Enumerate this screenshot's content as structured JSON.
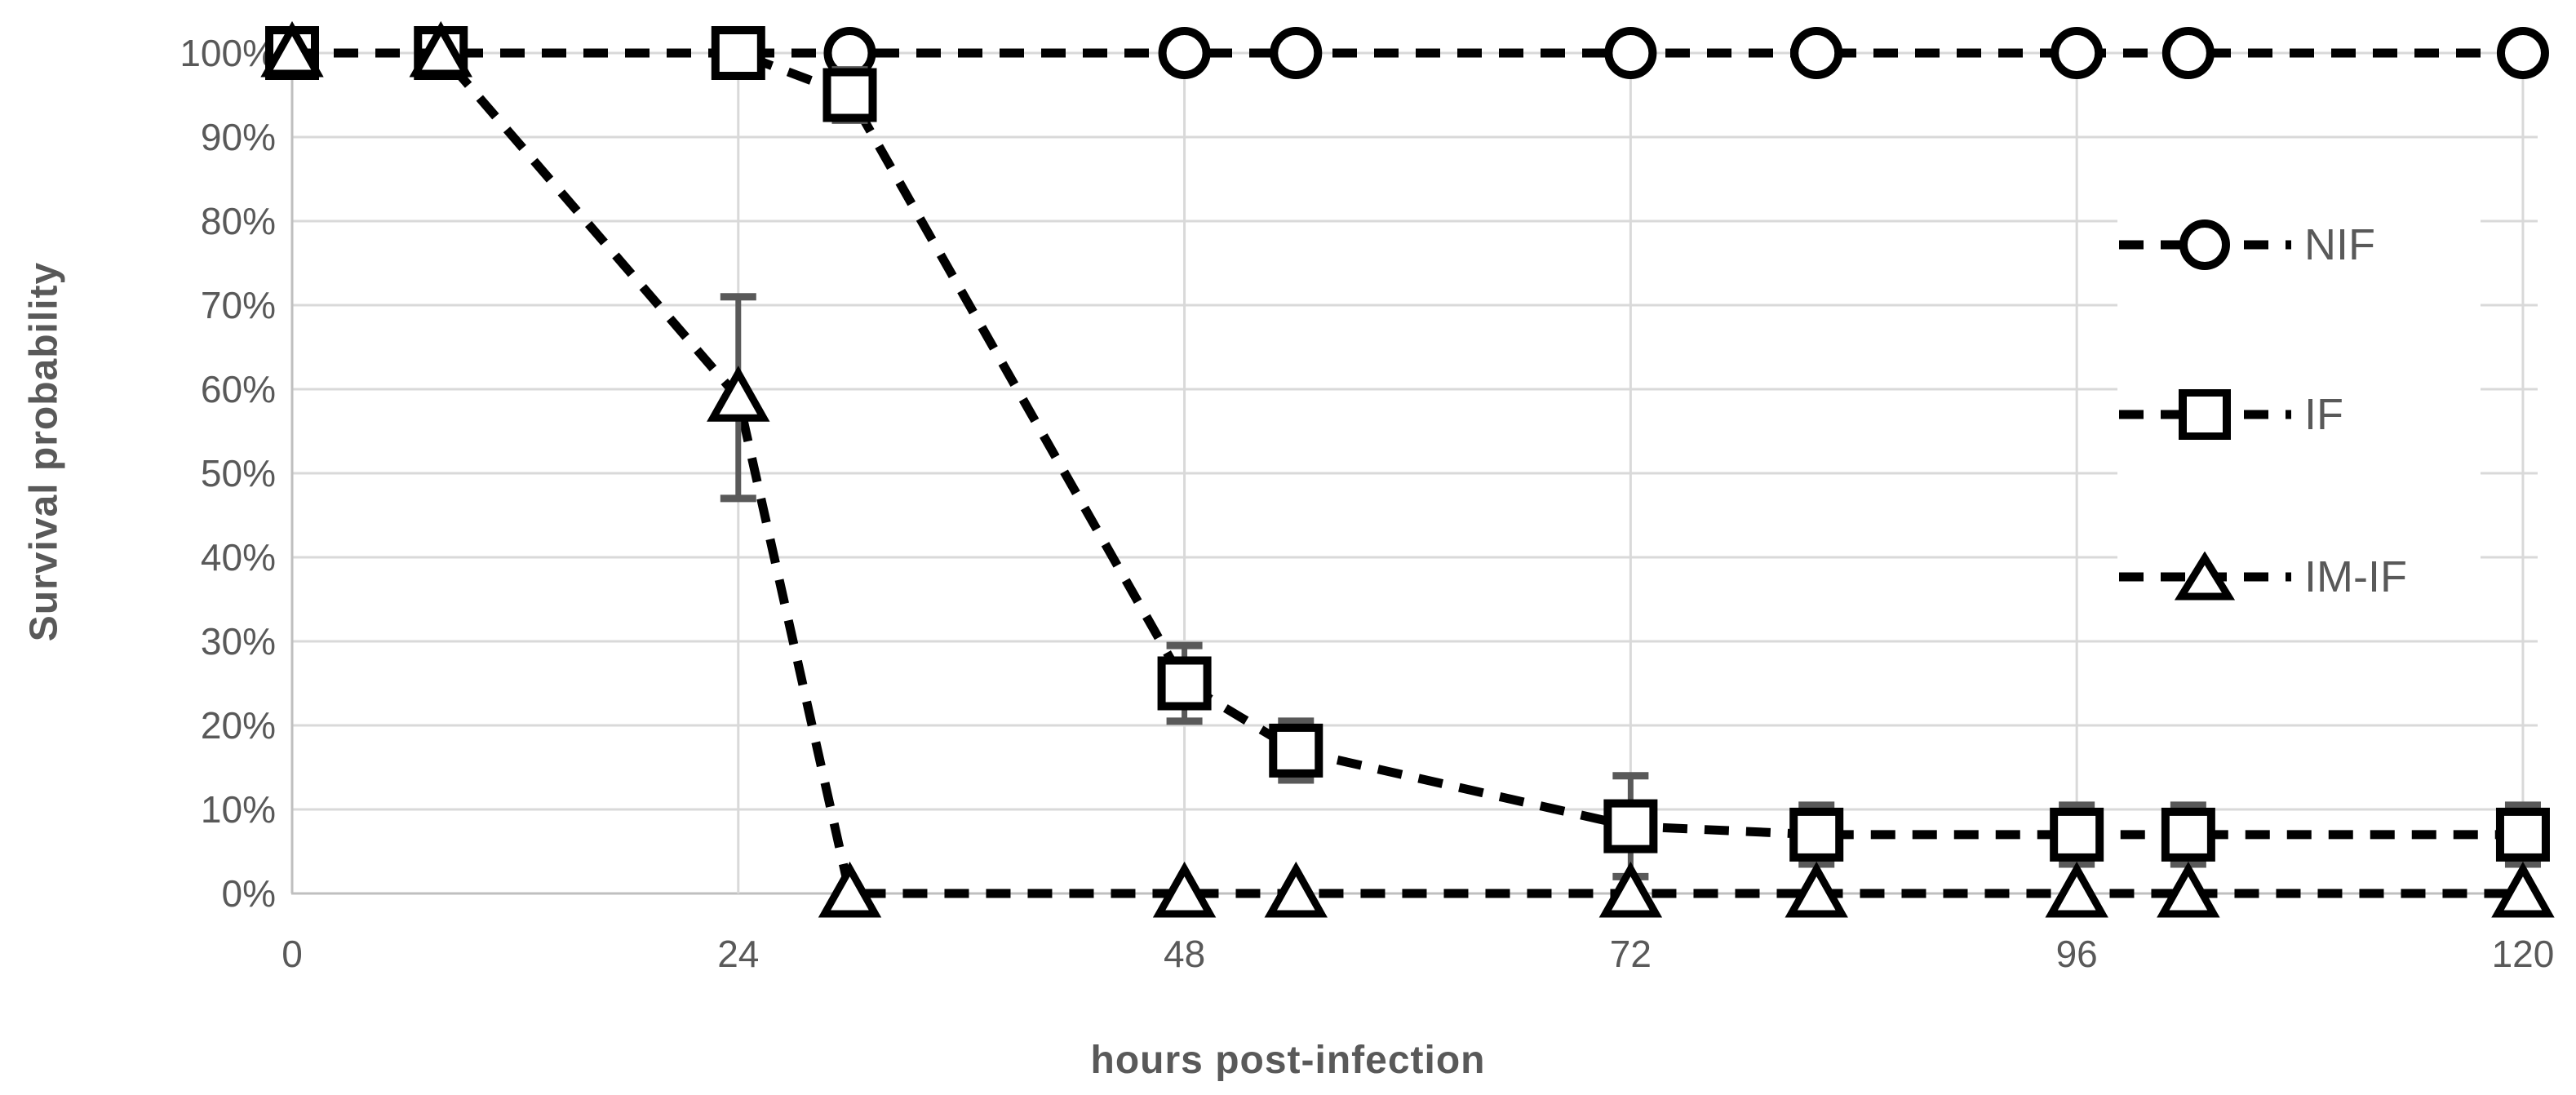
{
  "chart_data": {
    "type": "line",
    "title": "",
    "xlabel": "hours post-infection",
    "ylabel": "Survival probability",
    "x": [
      0,
      8,
      24,
      30,
      48,
      54,
      72,
      82,
      96,
      102,
      120
    ],
    "series": [
      {
        "name": "NIF",
        "marker": "circle",
        "values": [
          100,
          100,
          100,
          100,
          100,
          100,
          100,
          100,
          100,
          100,
          100
        ],
        "errors": [
          0,
          0,
          0,
          0,
          0,
          0,
          0,
          0,
          0,
          0,
          0
        ]
      },
      {
        "name": "IF",
        "marker": "square",
        "values": [
          100,
          100,
          100,
          95,
          25,
          17,
          8,
          7,
          7,
          7,
          7
        ],
        "errors": [
          0,
          0,
          0,
          3,
          4.5,
          3.5,
          6,
          3.5,
          3.5,
          3.5,
          3.5
        ]
      },
      {
        "name": "IM-IF",
        "marker": "triangle",
        "values": [
          100,
          100,
          59,
          0,
          0,
          0,
          0,
          0,
          0,
          0,
          0
        ],
        "errors": [
          0,
          0,
          12,
          0,
          0,
          0,
          0,
          0,
          0,
          0,
          0
        ]
      }
    ],
    "x_ticks": [
      0,
      24,
      48,
      72,
      96,
      120
    ],
    "x_tick_labels": [
      "0",
      "24",
      "48",
      "72",
      "96",
      "120"
    ],
    "y_ticks_pct": [
      0,
      10,
      20,
      30,
      40,
      50,
      60,
      70,
      80,
      90,
      100
    ],
    "y_tick_labels": [
      "0%",
      "10%",
      "20%",
      "30%",
      "40%",
      "50%",
      "60%",
      "70%",
      "80%",
      "90%",
      "100%"
    ],
    "xlim": [
      0,
      120
    ],
    "ylim_pct": [
      0,
      100
    ],
    "grid": true,
    "line_style": "dashed",
    "legend_position": "inside-right",
    "legend_items": [
      "NIF",
      "IF",
      "IM-IF"
    ]
  },
  "colors": {
    "series_line": "#000000",
    "marker_fill": "#ffffff",
    "marker_stroke": "#000000",
    "error_bar": "#595959",
    "gridline": "#d9d9d9",
    "axis_line": "#bfbfbf",
    "tick_text": "#595959",
    "title_text": "#595959",
    "background": "#ffffff"
  }
}
